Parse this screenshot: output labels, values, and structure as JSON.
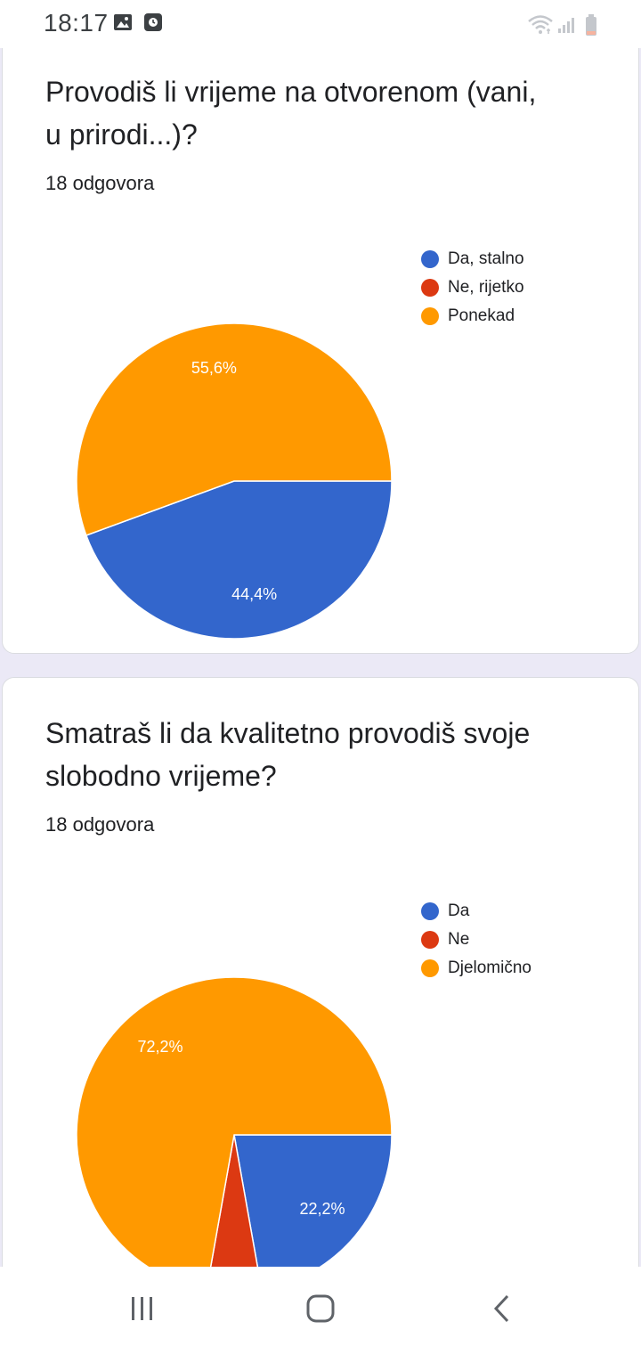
{
  "status_bar": {
    "time": "18:17",
    "icons": [
      "gallery-notification-icon",
      "app-notification-icon",
      "wifi-icon",
      "cellular-signal-icon",
      "battery-icon"
    ]
  },
  "colors": {
    "blue": "#3366cc",
    "red": "#dc3912",
    "orange": "#ff9900",
    "page_background": "#ebe9f6"
  },
  "questions": [
    {
      "title": "Provodiš li vrijeme na otvorenom (vani, u prirodi...)?",
      "response_count": "18 odgovora",
      "legend": [
        "Da, stalno",
        "Ne, rijetko",
        "Ponekad"
      ]
    },
    {
      "title": "Smatraš li da kvalitetno provodiš svoje slobodno vrijeme?",
      "response_count": "18 odgovora",
      "legend": [
        "Da",
        "Ne",
        "Djelomično"
      ]
    }
  ],
  "chart_data": [
    {
      "type": "pie",
      "categories": [
        "Da, stalno",
        "Ne, rijetko",
        "Ponekad"
      ],
      "values": [
        44.4,
        0,
        55.6
      ],
      "labels": [
        "44,4%",
        "",
        "55,6%"
      ],
      "colors": [
        "#3366cc",
        "#dc3912",
        "#ff9900"
      ],
      "legend": "right"
    },
    {
      "type": "pie",
      "categories": [
        "Da",
        "Ne",
        "Djelomično"
      ],
      "values": [
        22.2,
        5.6,
        72.2
      ],
      "labels": [
        "22,2%",
        "",
        "72,2%"
      ],
      "colors": [
        "#3366cc",
        "#dc3912",
        "#ff9900"
      ],
      "legend": "right"
    }
  ],
  "nav_bar": [
    "recent-apps-icon",
    "home-icon",
    "back-icon"
  ]
}
